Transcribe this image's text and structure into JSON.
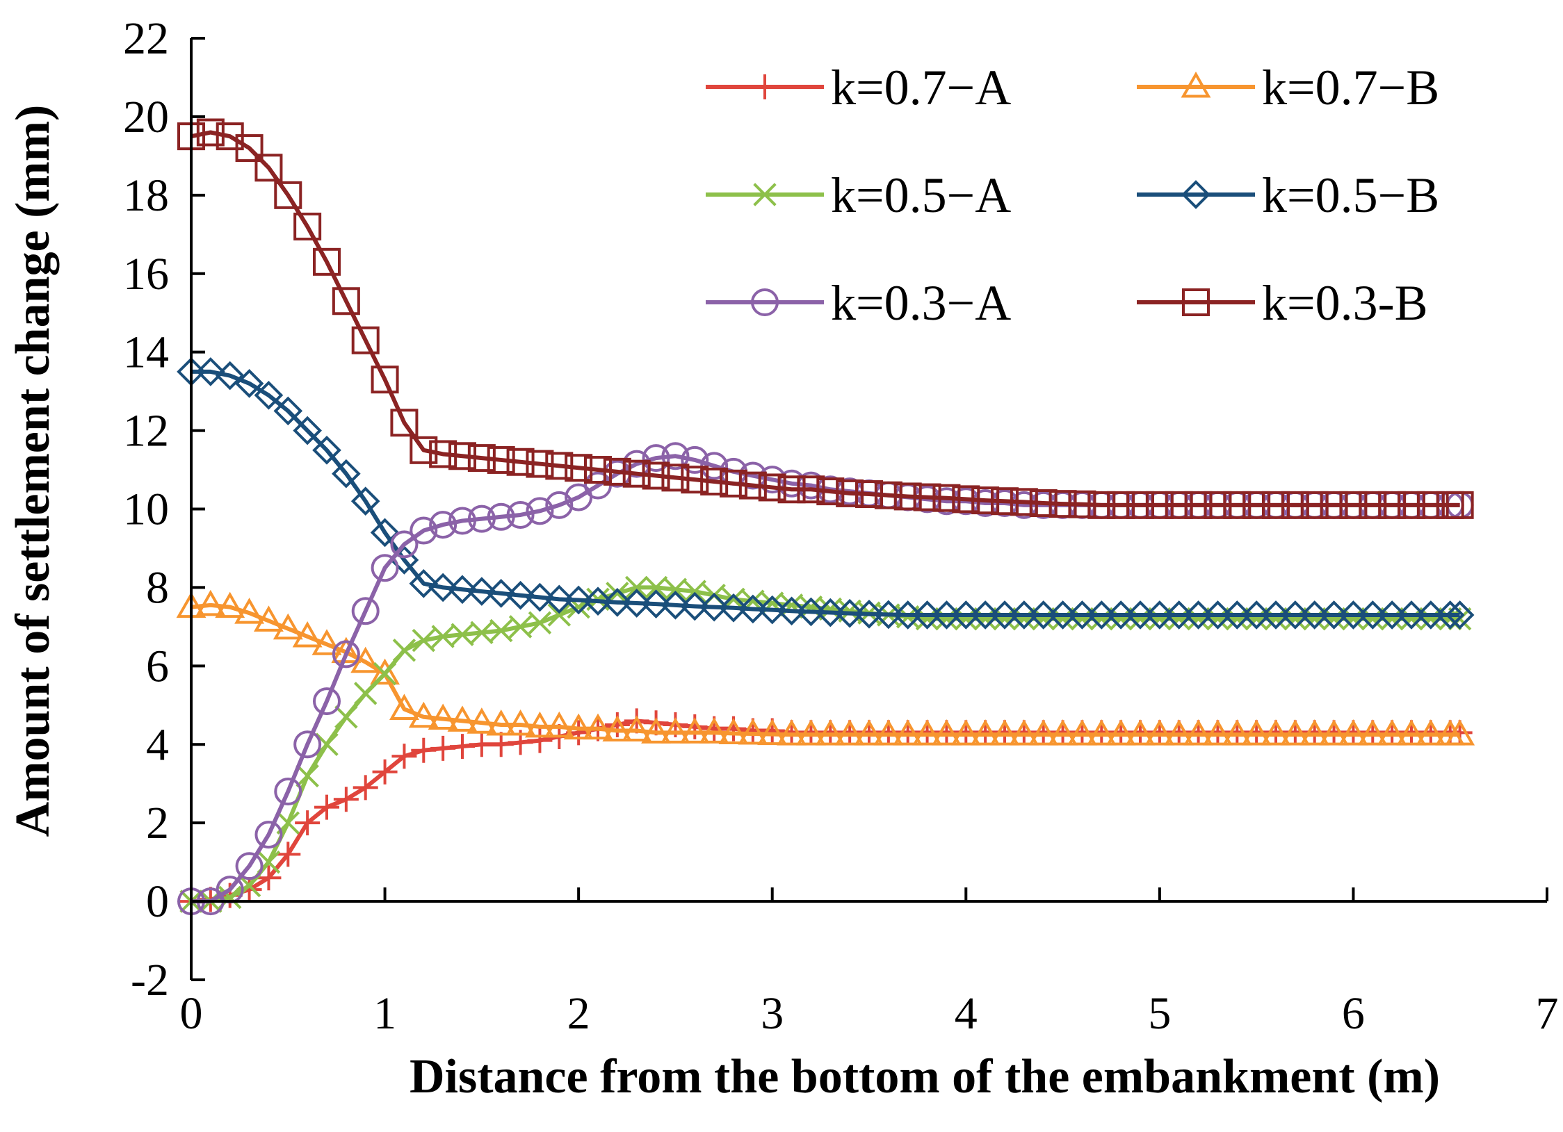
{
  "chart_data": {
    "type": "line",
    "title": "",
    "xlabel": "Distance from the bottom of the embankment (m)",
    "ylabel": "Amount of settlement change (mm)",
    "xlim": [
      0,
      7
    ],
    "ylim": [
      -2,
      22
    ],
    "xticks": [
      "0",
      "1",
      "2",
      "3",
      "4",
      "5",
      "6",
      "7"
    ],
    "yticks": [
      "-2",
      "0",
      "2",
      "4",
      "6",
      "8",
      "10",
      "12",
      "14",
      "16",
      "18",
      "20",
      "22"
    ],
    "grid": false,
    "legend_position": "top-right",
    "x": [
      0,
      0.1,
      0.2,
      0.3,
      0.4,
      0.5,
      0.6,
      0.7,
      0.8,
      0.9,
      1.0,
      1.1,
      1.2,
      1.3,
      1.4,
      1.5,
      1.6,
      1.7,
      1.8,
      1.9,
      2.0,
      2.1,
      2.2,
      2.3,
      2.4,
      2.5,
      2.6,
      2.7,
      2.8,
      2.9,
      3.0,
      3.1,
      3.2,
      3.3,
      3.4,
      3.5,
      3.6,
      3.7,
      3.8,
      3.9,
      4.0,
      4.1,
      4.2,
      4.3,
      4.4,
      4.5,
      4.6,
      4.7,
      4.8,
      4.9,
      5.0,
      5.1,
      5.2,
      5.3,
      5.4,
      5.5,
      5.6,
      5.7,
      5.8,
      5.9,
      6.0,
      6.1,
      6.2,
      6.3,
      6.4,
      6.5,
      6.55
    ],
    "series": [
      {
        "name": "k=0.7−A",
        "color": "#e0453c",
        "marker": "plus",
        "values": [
          0,
          0.05,
          0.15,
          0.3,
          0.6,
          1.2,
          2.0,
          2.4,
          2.6,
          2.9,
          3.3,
          3.7,
          3.85,
          3.9,
          3.95,
          4.0,
          4.0,
          4.05,
          4.1,
          4.2,
          4.3,
          4.4,
          4.5,
          4.6,
          4.55,
          4.5,
          4.45,
          4.4,
          4.4,
          4.35,
          4.35,
          4.3,
          4.3,
          4.3,
          4.3,
          4.3,
          4.3,
          4.3,
          4.3,
          4.3,
          4.3,
          4.3,
          4.3,
          4.3,
          4.3,
          4.3,
          4.3,
          4.3,
          4.3,
          4.3,
          4.3,
          4.3,
          4.3,
          4.3,
          4.3,
          4.3,
          4.3,
          4.3,
          4.3,
          4.3,
          4.3,
          4.3,
          4.3,
          4.3,
          4.3,
          4.3,
          4.3
        ]
      },
      {
        "name": "k=0.7−B",
        "color": "#f7952f",
        "marker": "triangle",
        "values": [
          7.5,
          7.55,
          7.5,
          7.35,
          7.15,
          6.95,
          6.75,
          6.55,
          6.35,
          6.1,
          5.8,
          4.9,
          4.7,
          4.65,
          4.6,
          4.55,
          4.5,
          4.5,
          4.45,
          4.45,
          4.4,
          4.4,
          4.35,
          4.35,
          4.3,
          4.3,
          4.3,
          4.3,
          4.28,
          4.27,
          4.26,
          4.25,
          4.25,
          4.25,
          4.25,
          4.25,
          4.25,
          4.25,
          4.25,
          4.25,
          4.25,
          4.25,
          4.25,
          4.25,
          4.25,
          4.25,
          4.25,
          4.25,
          4.25,
          4.25,
          4.25,
          4.25,
          4.25,
          4.25,
          4.25,
          4.25,
          4.25,
          4.25,
          4.25,
          4.25,
          4.25,
          4.25,
          4.25,
          4.25,
          4.25,
          4.25,
          4.25
        ]
      },
      {
        "name": "k=0.5−A",
        "color": "#8dc04a",
        "marker": "x",
        "values": [
          0,
          0,
          0.1,
          0.4,
          1.0,
          2.0,
          3.2,
          4.0,
          4.7,
          5.3,
          5.8,
          6.4,
          6.65,
          6.75,
          6.8,
          6.85,
          6.9,
          7.0,
          7.1,
          7.3,
          7.5,
          7.7,
          7.85,
          8.0,
          8.0,
          7.95,
          7.9,
          7.8,
          7.7,
          7.65,
          7.6,
          7.55,
          7.5,
          7.45,
          7.4,
          7.35,
          7.3,
          7.25,
          7.2,
          7.2,
          7.2,
          7.2,
          7.2,
          7.2,
          7.2,
          7.2,
          7.2,
          7.2,
          7.2,
          7.2,
          7.2,
          7.2,
          7.2,
          7.2,
          7.2,
          7.2,
          7.2,
          7.2,
          7.2,
          7.2,
          7.2,
          7.2,
          7.2,
          7.2,
          7.2,
          7.2,
          7.2
        ]
      },
      {
        "name": "k=0.5−B",
        "color": "#1a4e7a",
        "marker": "diamond",
        "values": [
          13.5,
          13.5,
          13.4,
          13.2,
          12.9,
          12.5,
          12.0,
          11.5,
          10.9,
          10.2,
          9.4,
          8.7,
          8.1,
          8.0,
          7.95,
          7.9,
          7.85,
          7.8,
          7.75,
          7.7,
          7.68,
          7.65,
          7.62,
          7.6,
          7.58,
          7.55,
          7.52,
          7.5,
          7.48,
          7.45,
          7.43,
          7.4,
          7.38,
          7.36,
          7.34,
          7.32,
          7.31,
          7.3,
          7.3,
          7.3,
          7.3,
          7.3,
          7.3,
          7.3,
          7.3,
          7.3,
          7.3,
          7.3,
          7.3,
          7.3,
          7.3,
          7.3,
          7.3,
          7.3,
          7.3,
          7.3,
          7.3,
          7.3,
          7.3,
          7.3,
          7.3,
          7.3,
          7.3,
          7.3,
          7.3,
          7.3,
          7.3
        ]
      },
      {
        "name": "k=0.3−A",
        "color": "#8b62a8",
        "marker": "circle",
        "values": [
          0,
          0,
          0.3,
          0.9,
          1.7,
          2.8,
          4.0,
          5.1,
          6.3,
          7.4,
          8.5,
          9.1,
          9.45,
          9.6,
          9.7,
          9.75,
          9.8,
          9.85,
          9.95,
          10.1,
          10.3,
          10.6,
          10.9,
          11.15,
          11.3,
          11.35,
          11.25,
          11.1,
          10.95,
          10.85,
          10.75,
          10.65,
          10.6,
          10.5,
          10.45,
          10.4,
          10.35,
          10.3,
          10.25,
          10.2,
          10.2,
          10.15,
          10.15,
          10.1,
          10.1,
          10.1,
          10.1,
          10.1,
          10.1,
          10.1,
          10.1,
          10.1,
          10.1,
          10.1,
          10.1,
          10.1,
          10.1,
          10.1,
          10.1,
          10.1,
          10.1,
          10.1,
          10.1,
          10.1,
          10.1,
          10.1,
          10.1
        ]
      },
      {
        "name": "k=0.3-B",
        "color": "#8b2323",
        "marker": "square",
        "values": [
          19.5,
          19.6,
          19.5,
          19.2,
          18.7,
          18.0,
          17.2,
          16.3,
          15.3,
          14.3,
          13.3,
          12.2,
          11.5,
          11.4,
          11.35,
          11.3,
          11.25,
          11.2,
          11.15,
          11.1,
          11.05,
          11.0,
          10.95,
          10.9,
          10.85,
          10.8,
          10.75,
          10.7,
          10.65,
          10.6,
          10.55,
          10.5,
          10.5,
          10.45,
          10.4,
          10.38,
          10.35,
          10.32,
          10.3,
          10.28,
          10.25,
          10.22,
          10.2,
          10.18,
          10.15,
          10.13,
          10.12,
          10.1,
          10.1,
          10.1,
          10.1,
          10.1,
          10.1,
          10.1,
          10.1,
          10.1,
          10.1,
          10.1,
          10.1,
          10.1,
          10.1,
          10.1,
          10.1,
          10.1,
          10.1,
          10.1,
          10.1
        ]
      }
    ]
  }
}
